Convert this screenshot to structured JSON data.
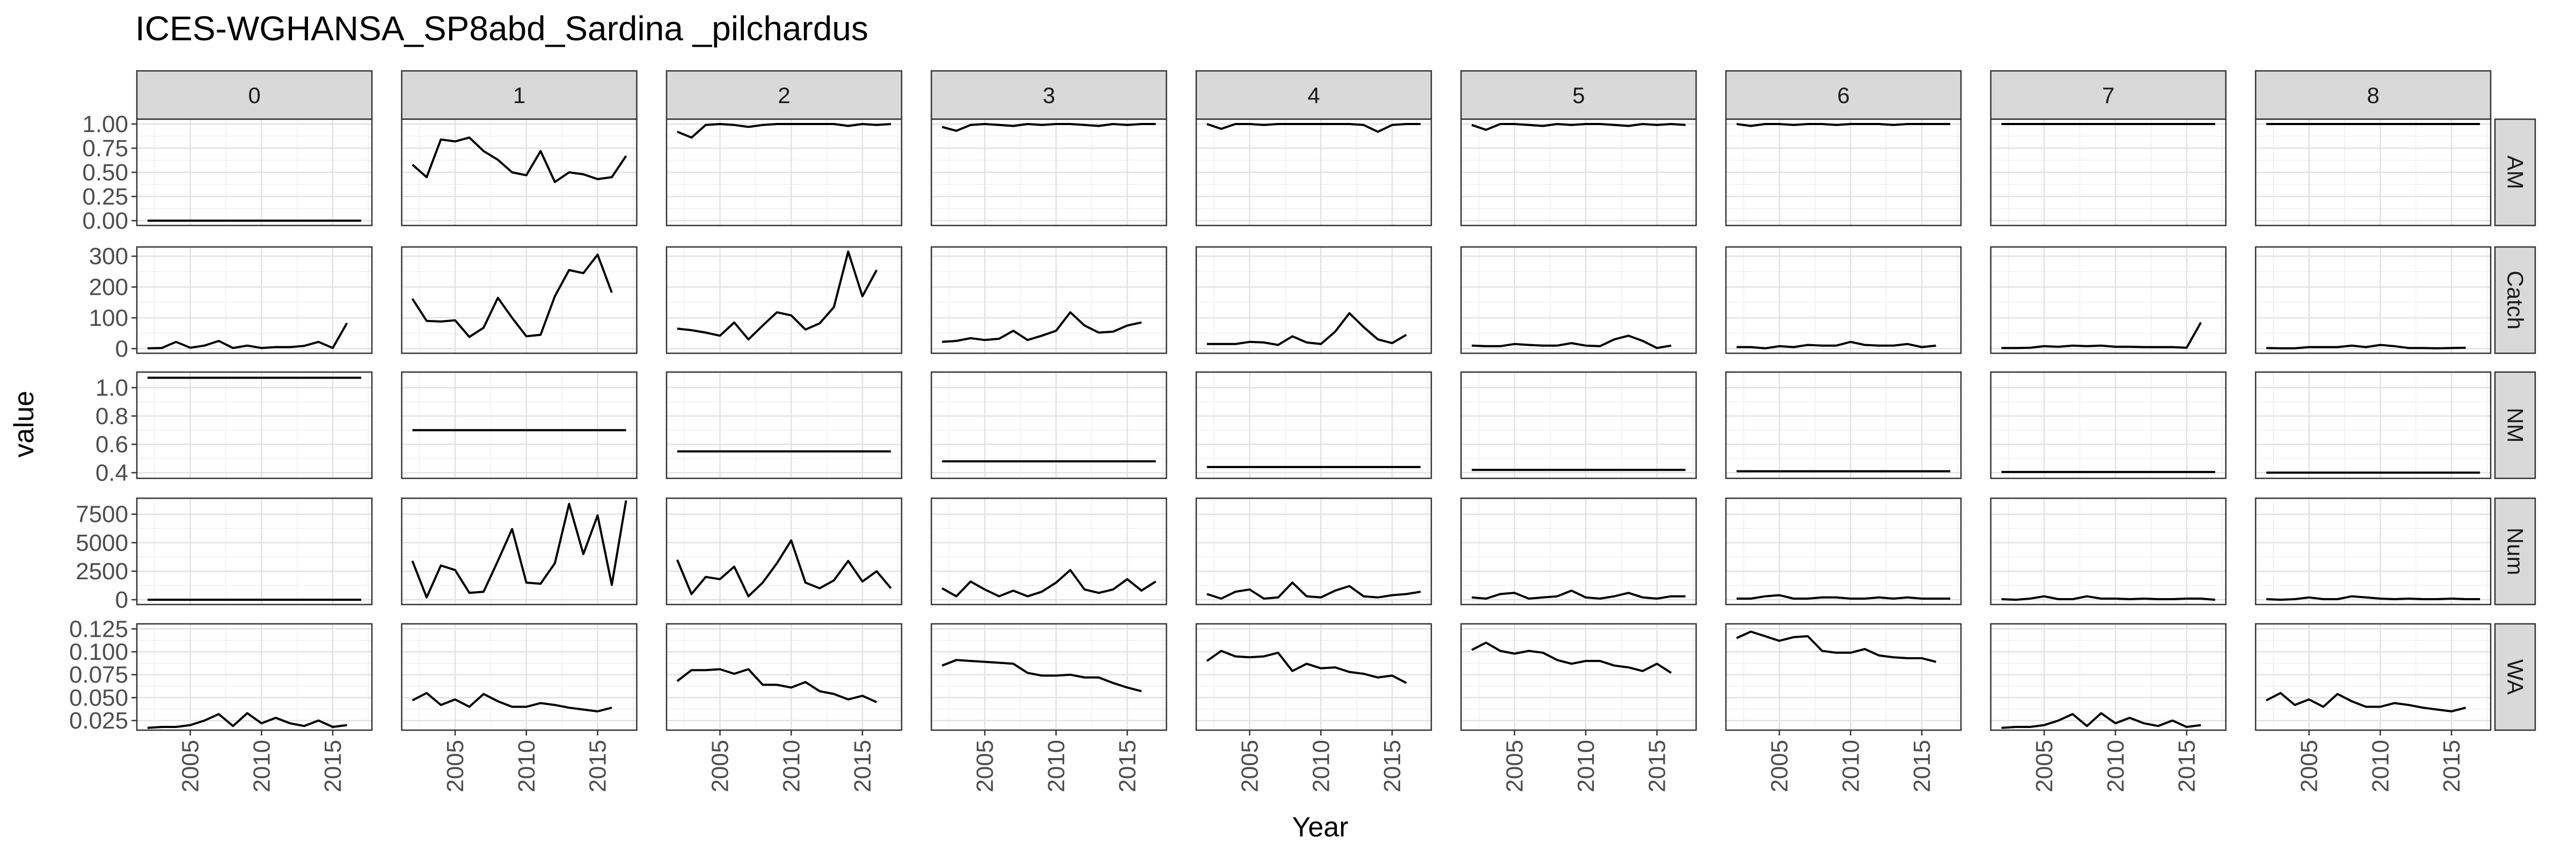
{
  "chart_data": {
    "type": "line",
    "title": "ICES-WGHANSA_SP8abd_Sardina _pilchardus",
    "xlabel": "Year",
    "ylabel": "value",
    "x": [
      2002,
      2003,
      2004,
      2005,
      2006,
      2007,
      2008,
      2009,
      2010,
      2011,
      2012,
      2013,
      2014,
      2015,
      2016,
      2017
    ],
    "xlim": [
      2001.25,
      2017.75
    ],
    "x_ticks": [
      2005,
      2010,
      2015
    ],
    "grid": true,
    "legend": "none",
    "columns": [
      "0",
      "1",
      "2",
      "3",
      "4",
      "5",
      "6",
      "7",
      "8"
    ],
    "rows": [
      {
        "name": "AM",
        "ylim": [
          -0.05,
          1.05
        ],
        "ticks": [
          0.0,
          0.25,
          0.5,
          0.75,
          1.0
        ],
        "tick_labels": [
          "0.00",
          "0.25",
          "0.50",
          "0.75",
          "1.00"
        ]
      },
      {
        "name": "Catch",
        "ylim": [
          -15,
          330
        ],
        "ticks": [
          0,
          100,
          200,
          300
        ],
        "tick_labels": [
          "0",
          "100",
          "200",
          "300"
        ]
      },
      {
        "name": "NM",
        "ylim": [
          0.36,
          1.11
        ],
        "ticks": [
          0.4,
          0.6,
          0.8,
          1.0
        ],
        "tick_labels": [
          "0.4",
          "0.6",
          "0.8",
          "1.0"
        ]
      },
      {
        "name": "Num",
        "ylim": [
          -420,
          8900
        ],
        "ticks": [
          0,
          2500,
          5000,
          7500
        ],
        "tick_labels": [
          "0",
          "2500",
          "5000",
          "7500"
        ]
      },
      {
        "name": "WA",
        "ylim": [
          0.0145,
          0.1305
        ],
        "ticks": [
          0.025,
          0.05,
          0.075,
          0.1,
          0.125
        ],
        "tick_labels": [
          "0.025",
          "0.050",
          "0.075",
          "0.100",
          "0.125"
        ]
      }
    ],
    "series": {
      "AM": {
        "0": [
          0,
          0,
          0,
          0,
          0,
          0,
          0,
          0,
          0,
          0,
          0,
          0,
          0,
          0,
          0,
          0
        ],
        "1": [
          0.58,
          0.45,
          0.84,
          0.82,
          0.86,
          0.72,
          0.63,
          0.5,
          0.47,
          0.72,
          0.4,
          0.5,
          0.48,
          0.43,
          0.45,
          0.67
        ],
        "2": [
          0.92,
          0.86,
          0.99,
          1.0,
          0.99,
          0.97,
          0.99,
          1.0,
          1.0,
          1.0,
          1.0,
          1.0,
          0.98,
          1.0,
          0.99,
          1.0
        ],
        "3": [
          0.97,
          0.93,
          0.99,
          1.0,
          0.99,
          0.98,
          1.0,
          0.99,
          1.0,
          1.0,
          0.99,
          0.98,
          1.0,
          0.99,
          1.0,
          1.0
        ],
        "4": [
          1.0,
          0.95,
          1.0,
          1.0,
          0.99,
          1.0,
          1.0,
          1.0,
          1.0,
          1.0,
          1.0,
          0.99,
          0.92,
          0.99,
          1.0,
          1.0
        ],
        "5": [
          0.99,
          0.94,
          1.0,
          1.0,
          0.99,
          0.98,
          1.0,
          0.99,
          1.0,
          1.0,
          0.99,
          0.98,
          1.0,
          0.99,
          1.0,
          0.99
        ],
        "6": [
          1.0,
          0.98,
          1.0,
          1.0,
          0.99,
          1.0,
          1.0,
          0.99,
          1.0,
          1.0,
          1.0,
          0.99,
          1.0,
          1.0,
          1.0,
          1.0
        ],
        "7": [
          1,
          1,
          1,
          1,
          1,
          1,
          1,
          1,
          1,
          1,
          1,
          1,
          1,
          1,
          1,
          1
        ],
        "8": [
          1,
          1,
          1,
          1,
          1,
          1,
          1,
          1,
          1,
          1,
          1,
          1,
          1,
          1,
          1,
          1
        ]
      },
      "Catch": {
        "0": [
          1,
          2,
          22,
          3,
          10,
          25,
          2,
          10,
          2,
          5,
          5,
          9,
          22,
          2,
          83,
          null
        ],
        "1": [
          162,
          90,
          88,
          92,
          38,
          68,
          165,
          100,
          40,
          45,
          170,
          255,
          245,
          305,
          182,
          null
        ],
        "2": [
          65,
          60,
          52,
          42,
          85,
          30,
          75,
          118,
          108,
          62,
          82,
          135,
          315,
          170,
          255,
          null
        ],
        "3": [
          22,
          25,
          34,
          28,
          32,
          58,
          28,
          42,
          58,
          118,
          75,
          52,
          55,
          75,
          85,
          null
        ],
        "4": [
          15,
          15,
          15,
          22,
          20,
          12,
          40,
          20,
          15,
          55,
          115,
          70,
          30,
          18,
          45,
          null
        ],
        "5": [
          10,
          8,
          8,
          15,
          12,
          10,
          10,
          18,
          10,
          8,
          30,
          42,
          25,
          2,
          10,
          null
        ],
        "6": [
          5,
          5,
          1,
          8,
          5,
          12,
          10,
          10,
          22,
          12,
          10,
          10,
          15,
          5,
          10,
          null
        ],
        "7": [
          2,
          2,
          3,
          8,
          6,
          10,
          8,
          10,
          6,
          6,
          5,
          5,
          5,
          3,
          85,
          null
        ],
        "8": [
          2,
          1,
          1,
          5,
          5,
          5,
          10,
          5,
          12,
          8,
          2,
          2,
          1,
          2,
          3,
          null
        ]
      },
      "NM": {
        "0": [
          1.07,
          1.07,
          1.07,
          1.07,
          1.07,
          1.07,
          1.07,
          1.07,
          1.07,
          1.07,
          1.07,
          1.07,
          1.07,
          1.07,
          1.07,
          1.07
        ],
        "1": [
          0.7,
          0.7,
          0.7,
          0.7,
          0.7,
          0.7,
          0.7,
          0.7,
          0.7,
          0.7,
          0.7,
          0.7,
          0.7,
          0.7,
          0.7,
          0.7
        ],
        "2": [
          0.55,
          0.55,
          0.55,
          0.55,
          0.55,
          0.55,
          0.55,
          0.55,
          0.55,
          0.55,
          0.55,
          0.55,
          0.55,
          0.55,
          0.55,
          0.55
        ],
        "3": [
          0.48,
          0.48,
          0.48,
          0.48,
          0.48,
          0.48,
          0.48,
          0.48,
          0.48,
          0.48,
          0.48,
          0.48,
          0.48,
          0.48,
          0.48,
          0.48
        ],
        "4": [
          0.44,
          0.44,
          0.44,
          0.44,
          0.44,
          0.44,
          0.44,
          0.44,
          0.44,
          0.44,
          0.44,
          0.44,
          0.44,
          0.44,
          0.44,
          0.44
        ],
        "5": [
          0.42,
          0.42,
          0.42,
          0.42,
          0.42,
          0.42,
          0.42,
          0.42,
          0.42,
          0.42,
          0.42,
          0.42,
          0.42,
          0.42,
          0.42,
          0.42
        ],
        "6": [
          0.41,
          0.41,
          0.41,
          0.41,
          0.41,
          0.41,
          0.41,
          0.41,
          0.41,
          0.41,
          0.41,
          0.41,
          0.41,
          0.41,
          0.41,
          0.41
        ],
        "7": [
          0.405,
          0.405,
          0.405,
          0.405,
          0.405,
          0.405,
          0.405,
          0.405,
          0.405,
          0.405,
          0.405,
          0.405,
          0.405,
          0.405,
          0.405,
          0.405
        ],
        "8": [
          0.4,
          0.4,
          0.4,
          0.4,
          0.4,
          0.4,
          0.4,
          0.4,
          0.4,
          0.4,
          0.4,
          0.4,
          0.4,
          0.4,
          0.4,
          0.4
        ]
      },
      "Num": {
        "0": [
          0,
          0,
          0,
          0,
          0,
          0,
          0,
          0,
          0,
          0,
          0,
          0,
          0,
          0,
          0,
          0
        ],
        "1": [
          3400,
          200,
          3000,
          2600,
          600,
          700,
          3400,
          6200,
          1500,
          1400,
          3200,
          8400,
          4000,
          7400,
          1300,
          8700
        ],
        "2": [
          3500,
          500,
          2000,
          1800,
          2900,
          300,
          1500,
          3200,
          5200,
          1500,
          1000,
          1700,
          3400,
          1600,
          2500,
          1000
        ],
        "3": [
          1000,
          300,
          1600,
          900,
          300,
          800,
          300,
          700,
          1500,
          2600,
          900,
          600,
          900,
          1800,
          800,
          1600
        ],
        "4": [
          500,
          100,
          700,
          900,
          100,
          200,
          1500,
          300,
          200,
          800,
          1200,
          300,
          200,
          400,
          500,
          700
        ],
        "5": [
          200,
          100,
          500,
          600,
          100,
          200,
          300,
          800,
          200,
          100,
          300,
          600,
          200,
          100,
          300,
          300
        ],
        "6": [
          100,
          100,
          300,
          400,
          100,
          100,
          200,
          200,
          100,
          100,
          200,
          100,
          200,
          100,
          100,
          100
        ],
        "7": [
          50,
          0,
          100,
          300,
          50,
          50,
          300,
          100,
          100,
          50,
          100,
          50,
          50,
          100,
          100,
          0
        ],
        "8": [
          50,
          0,
          50,
          200,
          50,
          50,
          300,
          200,
          100,
          50,
          100,
          50,
          50,
          100,
          50,
          50
        ]
      },
      "WA": {
        "0": [
          0.017,
          0.018,
          0.018,
          0.02,
          0.025,
          0.032,
          0.019,
          0.033,
          0.022,
          0.028,
          0.022,
          0.019,
          0.025,
          0.018,
          0.02,
          null
        ],
        "1": [
          0.047,
          0.055,
          0.042,
          0.048,
          0.04,
          0.054,
          0.046,
          0.04,
          0.04,
          0.044,
          0.042,
          0.039,
          0.037,
          0.035,
          0.039,
          null
        ],
        "2": [
          0.068,
          0.08,
          0.08,
          0.081,
          0.076,
          0.081,
          0.064,
          0.064,
          0.061,
          0.067,
          0.057,
          0.054,
          0.048,
          0.052,
          0.045,
          null
        ],
        "3": [
          0.085,
          0.091,
          0.09,
          0.089,
          0.088,
          0.087,
          0.077,
          0.074,
          0.074,
          0.075,
          0.072,
          0.072,
          0.066,
          0.061,
          0.057,
          null
        ],
        "4": [
          0.09,
          0.101,
          0.095,
          0.094,
          0.095,
          0.099,
          0.079,
          0.087,
          0.082,
          0.083,
          0.078,
          0.076,
          0.072,
          0.074,
          0.066,
          null
        ],
        "5": [
          0.102,
          0.11,
          0.101,
          0.098,
          0.101,
          0.099,
          0.091,
          0.087,
          0.09,
          0.09,
          0.085,
          0.083,
          0.079,
          0.087,
          0.077,
          null
        ],
        "6": [
          0.115,
          0.122,
          0.117,
          0.112,
          0.116,
          0.117,
          0.101,
          0.099,
          0.099,
          0.103,
          0.096,
          0.094,
          0.093,
          0.093,
          0.089,
          null
        ],
        "7": [
          0.017,
          0.018,
          0.018,
          0.02,
          0.025,
          0.032,
          0.019,
          0.033,
          0.022,
          0.028,
          0.022,
          0.019,
          0.025,
          0.018,
          0.02,
          null
        ],
        "8": [
          0.047,
          0.055,
          0.042,
          0.048,
          0.04,
          0.054,
          0.046,
          0.04,
          0.04,
          0.044,
          0.042,
          0.039,
          0.037,
          0.035,
          0.039,
          null
        ]
      }
    }
  }
}
